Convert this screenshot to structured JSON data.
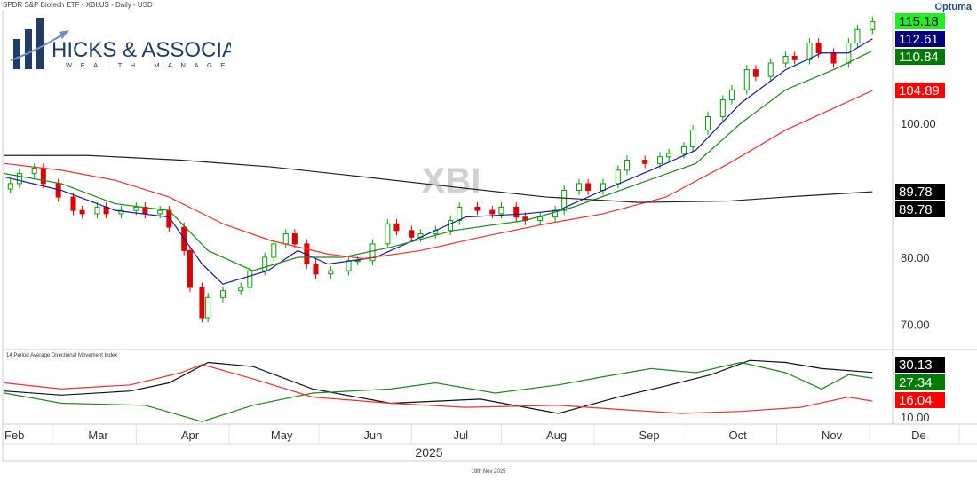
{
  "header": {
    "title": "SPDR S&P Biotech ETF - XBI:US - Daily - USD",
    "watermark": "XBI",
    "brand": "Optuma"
  },
  "logo": {
    "name": "Hicks & Associates",
    "tagline": "WEALTH MANAGEMENT"
  },
  "footer": {
    "year": "2025",
    "date": "18th Nov 2025"
  },
  "indicator": {
    "title": "14 Period Average Directional Movement Index"
  },
  "colors": {
    "up": "#00a000",
    "down": "#e00000",
    "ma_blue": "#1a1a9a",
    "ma_green": "#1b8a1b",
    "ma_red": "#f03030",
    "ma_black": "#222222",
    "logo": "#1f3d66"
  },
  "chart_data": [
    {
      "type": "candlestick",
      "title": "SPDR S&P Biotech ETF - XBI:US - Daily - USD",
      "ylim": [
        66,
        117
      ],
      "yticks": [
        "70.00",
        "80.00",
        "100.00"
      ],
      "xticks": [
        "Feb",
        "Mar",
        "Apr",
        "May",
        "Jun",
        "Jul",
        "Aug",
        "Sep",
        "Oct",
        "Nov",
        "De"
      ],
      "grid": true,
      "closes": [
        [
          "2025-02-03",
          91
        ],
        [
          "2025-02-06",
          92.5
        ],
        [
          "2025-02-11",
          93.3
        ],
        [
          "2025-02-14",
          91
        ],
        [
          "2025-02-19",
          89
        ],
        [
          "2025-02-24",
          87
        ],
        [
          "2025-02-27",
          86.5
        ],
        [
          "2025-03-04",
          87.5
        ],
        [
          "2025-03-07",
          86.5
        ],
        [
          "2025-03-12",
          87
        ],
        [
          "2025-03-17",
          87.5
        ],
        [
          "2025-03-20",
          86.5
        ],
        [
          "2025-03-25",
          87
        ],
        [
          "2025-03-28",
          84.5
        ],
        [
          "2025-04-02",
          81
        ],
        [
          "2025-04-04",
          75.5
        ],
        [
          "2025-04-08",
          71
        ],
        [
          "2025-04-10",
          74
        ],
        [
          "2025-04-15",
          75
        ],
        [
          "2025-04-21",
          75.5
        ],
        [
          "2025-04-24",
          78
        ],
        [
          "2025-04-29",
          80
        ],
        [
          "2025-05-02",
          82
        ],
        [
          "2025-05-06",
          83.5
        ],
        [
          "2025-05-09",
          82
        ],
        [
          "2025-05-13",
          79
        ],
        [
          "2025-05-16",
          77.5
        ],
        [
          "2025-05-21",
          78
        ],
        [
          "2025-05-27",
          79.5
        ],
        [
          "2025-05-30",
          79.5
        ],
        [
          "2025-06-04",
          82
        ],
        [
          "2025-06-09",
          85
        ],
        [
          "2025-06-12",
          84
        ],
        [
          "2025-06-17",
          83
        ],
        [
          "2025-06-20",
          83.5
        ],
        [
          "2025-06-25",
          84
        ],
        [
          "2025-06-30",
          85.5
        ],
        [
          "2025-07-03",
          87.5
        ],
        [
          "2025-07-09",
          87
        ],
        [
          "2025-07-14",
          86.5
        ],
        [
          "2025-07-17",
          87.5
        ],
        [
          "2025-07-22",
          86
        ],
        [
          "2025-07-25",
          85.5
        ],
        [
          "2025-07-30",
          86
        ],
        [
          "2025-08-04",
          87
        ],
        [
          "2025-08-07",
          90
        ],
        [
          "2025-08-12",
          91
        ],
        [
          "2025-08-15",
          90
        ],
        [
          "2025-08-20",
          91
        ],
        [
          "2025-08-25",
          93
        ],
        [
          "2025-08-28",
          94.5
        ],
        [
          "2025-09-03",
          94
        ],
        [
          "2025-09-08",
          95
        ],
        [
          "2025-09-11",
          95.5
        ],
        [
          "2025-09-16",
          96.5
        ],
        [
          "2025-09-19",
          99
        ],
        [
          "2025-09-24",
          101
        ],
        [
          "2025-09-29",
          103.5
        ],
        [
          "2025-10-02",
          105
        ],
        [
          "2025-10-07",
          108
        ],
        [
          "2025-10-10",
          107
        ],
        [
          "2025-10-15",
          109
        ],
        [
          "2025-10-20",
          110
        ],
        [
          "2025-10-23",
          109.5
        ],
        [
          "2025-10-28",
          112
        ],
        [
          "2025-10-31",
          110.5
        ],
        [
          "2025-11-05",
          109
        ],
        [
          "2025-11-10",
          112
        ],
        [
          "2025-11-13",
          114
        ],
        [
          "2025-11-18",
          115.18
        ]
      ],
      "series": [
        {
          "key": "blue",
          "last": "112.61",
          "points": [
            [
              "2025-02-01",
              92
            ],
            [
              "2025-02-20",
              90
            ],
            [
              "2025-03-10",
              87
            ],
            [
              "2025-03-28",
              86
            ],
            [
              "2025-04-08",
              79
            ],
            [
              "2025-04-15",
              76
            ],
            [
              "2025-04-30",
              78
            ],
            [
              "2025-05-10",
              81
            ],
            [
              "2025-05-20",
              79
            ],
            [
              "2025-06-05",
              80
            ],
            [
              "2025-06-20",
              83
            ],
            [
              "2025-07-05",
              86
            ],
            [
              "2025-07-25",
              86.5
            ],
            [
              "2025-08-05",
              87
            ],
            [
              "2025-08-20",
              90
            ],
            [
              "2025-09-05",
              93
            ],
            [
              "2025-09-20",
              96
            ],
            [
              "2025-10-05",
              103
            ],
            [
              "2025-10-20",
              108
            ],
            [
              "2025-11-01",
              110.5
            ],
            [
              "2025-11-10",
              110.5
            ],
            [
              "2025-11-18",
              112.61
            ]
          ]
        },
        {
          "key": "green",
          "last": "110.84",
          "points": [
            [
              "2025-02-01",
              92.5
            ],
            [
              "2025-02-20",
              91
            ],
            [
              "2025-03-10",
              88
            ],
            [
              "2025-03-28",
              87
            ],
            [
              "2025-04-10",
              81
            ],
            [
              "2025-04-25",
              78
            ],
            [
              "2025-05-10",
              80
            ],
            [
              "2025-05-25",
              80
            ],
            [
              "2025-06-10",
              81.5
            ],
            [
              "2025-07-01",
              84
            ],
            [
              "2025-07-25",
              85.5
            ],
            [
              "2025-08-10",
              87.5
            ],
            [
              "2025-09-01",
              91
            ],
            [
              "2025-09-20",
              94
            ],
            [
              "2025-10-05",
              100
            ],
            [
              "2025-10-20",
              105
            ],
            [
              "2025-11-05",
              108
            ],
            [
              "2025-11-18",
              110.84
            ]
          ]
        },
        {
          "key": "red",
          "last": "104.89",
          "points": [
            [
              "2025-02-01",
              94
            ],
            [
              "2025-02-20",
              93
            ],
            [
              "2025-03-10",
              91.5
            ],
            [
              "2025-03-28",
              89
            ],
            [
              "2025-04-15",
              85
            ],
            [
              "2025-05-01",
              82.5
            ],
            [
              "2025-05-20",
              80.5
            ],
            [
              "2025-06-01",
              79.8
            ],
            [
              "2025-06-20",
              81
            ],
            [
              "2025-07-10",
              83
            ],
            [
              "2025-08-01",
              85
            ],
            [
              "2025-08-20",
              86.5
            ],
            [
              "2025-09-10",
              89
            ],
            [
              "2025-10-01",
              94
            ],
            [
              "2025-10-20",
              99
            ],
            [
              "2025-11-18",
              104.89
            ]
          ]
        },
        {
          "key": "black",
          "last": "89.78",
          "points": [
            [
              "2025-02-01",
              95.2
            ],
            [
              "2025-03-01",
              95.2
            ],
            [
              "2025-04-01",
              94.5
            ],
            [
              "2025-05-01",
              93.5
            ],
            [
              "2025-06-01",
              92
            ],
            [
              "2025-07-01",
              90.5
            ],
            [
              "2025-08-01",
              89
            ],
            [
              "2025-09-01",
              88.2
            ],
            [
              "2025-10-01",
              88.4
            ],
            [
              "2025-10-20",
              89
            ],
            [
              "2025-11-18",
              89.78
            ]
          ]
        }
      ]
    },
    {
      "type": "line",
      "title": "14 Period Average Directional Movement Index",
      "ylim": [
        5,
        45
      ],
      "yticks": [
        "10.00"
      ],
      "series": [
        {
          "key": "adx",
          "last": "30.13",
          "points": [
            [
              "2025-02-01",
              21
            ],
            [
              "2025-02-20",
              19
            ],
            [
              "2025-03-15",
              21
            ],
            [
              "2025-03-28",
              25
            ],
            [
              "2025-04-10",
              35
            ],
            [
              "2025-04-25",
              33
            ],
            [
              "2025-05-15",
              22
            ],
            [
              "2025-06-10",
              15
            ],
            [
              "2025-07-10",
              17
            ],
            [
              "2025-07-25",
              13
            ],
            [
              "2025-08-05",
              10
            ],
            [
              "2025-08-25",
              18
            ],
            [
              "2025-09-10",
              23.5
            ],
            [
              "2025-09-25",
              29
            ],
            [
              "2025-10-08",
              36
            ],
            [
              "2025-10-20",
              35
            ],
            [
              "2025-11-01",
              32
            ],
            [
              "2025-11-18",
              30.13
            ]
          ]
        },
        {
          "key": "plus_di",
          "last": "27.34",
          "points": [
            [
              "2025-02-01",
              20
            ],
            [
              "2025-02-20",
              15
            ],
            [
              "2025-03-20",
              14
            ],
            [
              "2025-04-08",
              6
            ],
            [
              "2025-04-25",
              14
            ],
            [
              "2025-05-15",
              20
            ],
            [
              "2025-06-10",
              22
            ],
            [
              "2025-06-25",
              25
            ],
            [
              "2025-07-15",
              20
            ],
            [
              "2025-08-05",
              24
            ],
            [
              "2025-08-20",
              28
            ],
            [
              "2025-09-05",
              32
            ],
            [
              "2025-09-20",
              30
            ],
            [
              "2025-10-05",
              35
            ],
            [
              "2025-10-20",
              30
            ],
            [
              "2025-11-01",
              22
            ],
            [
              "2025-11-10",
              29
            ],
            [
              "2025-11-18",
              27.34
            ]
          ]
        },
        {
          "key": "minus_di",
          "last": "16.04",
          "points": [
            [
              "2025-02-01",
              25
            ],
            [
              "2025-02-20",
              22
            ],
            [
              "2025-03-15",
              24
            ],
            [
              "2025-04-01",
              30
            ],
            [
              "2025-04-08",
              34
            ],
            [
              "2025-04-25",
              27
            ],
            [
              "2025-05-15",
              18
            ],
            [
              "2025-06-10",
              15
            ],
            [
              "2025-07-05",
              13
            ],
            [
              "2025-08-05",
              14
            ],
            [
              "2025-08-25",
              12
            ],
            [
              "2025-09-15",
              10
            ],
            [
              "2025-10-05",
              11
            ],
            [
              "2025-10-25",
              13
            ],
            [
              "2025-11-10",
              18
            ],
            [
              "2025-11-18",
              16.04
            ]
          ]
        }
      ]
    }
  ]
}
